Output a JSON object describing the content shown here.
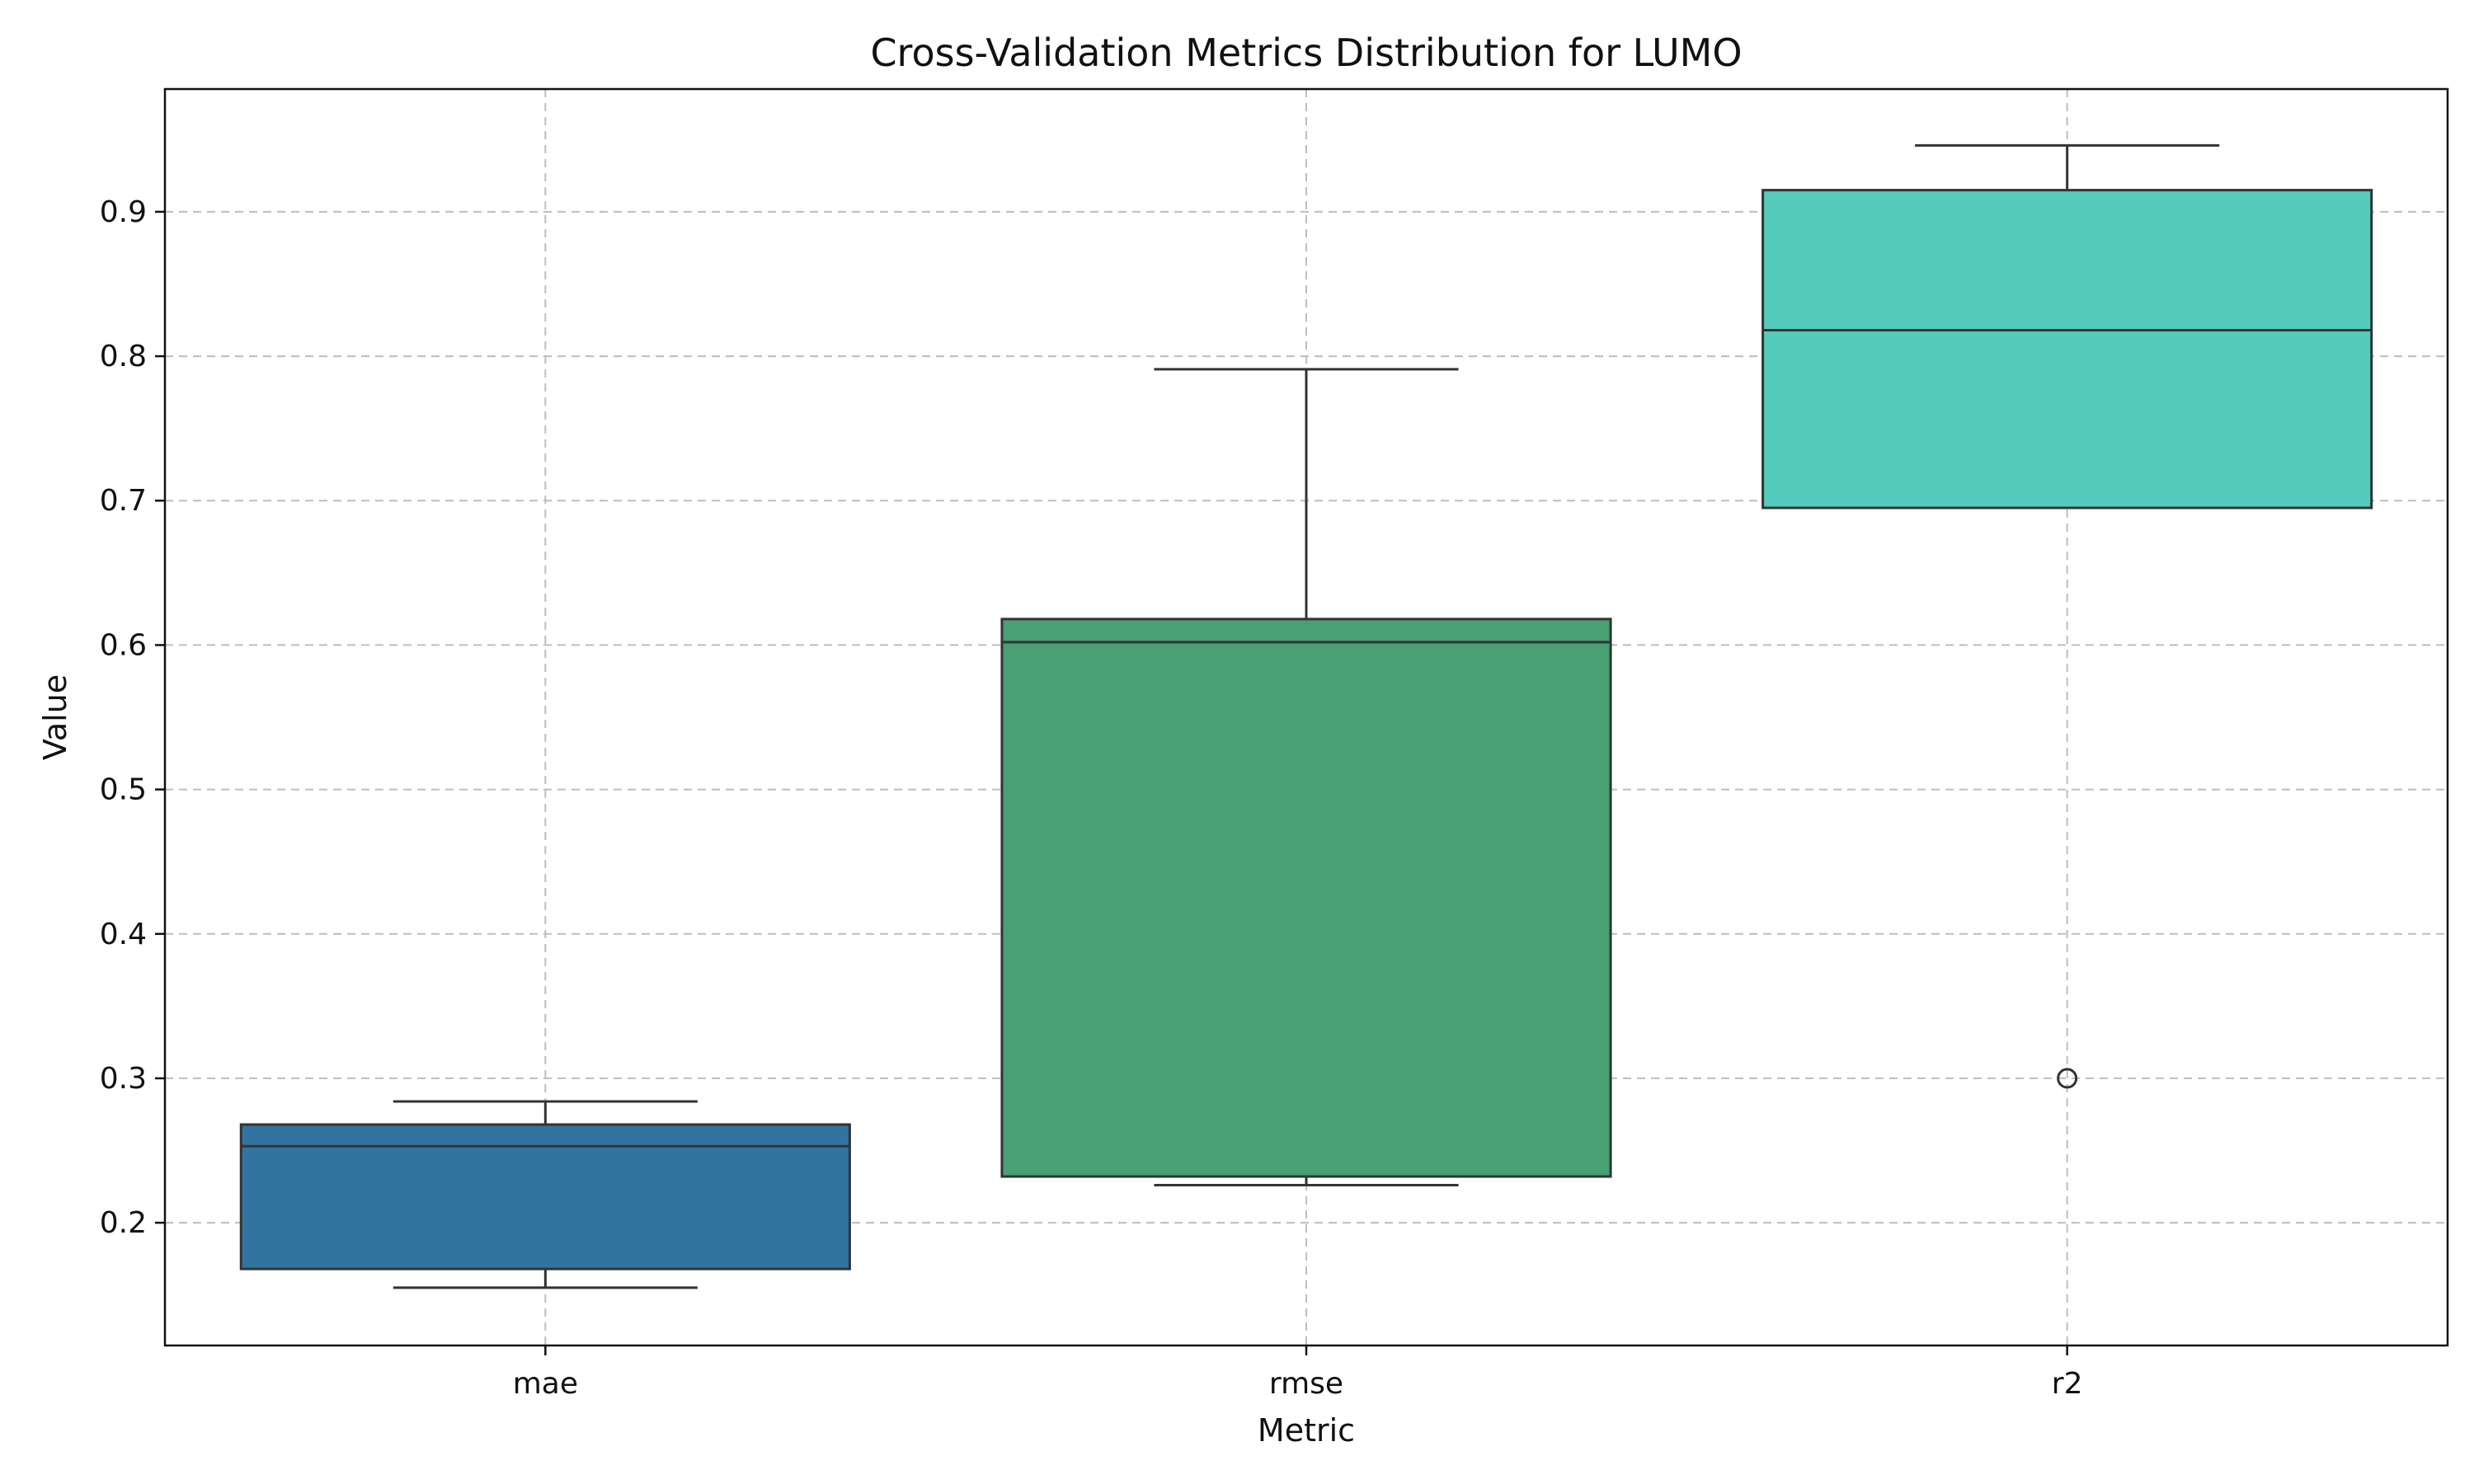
{
  "chart_data": {
    "type": "box",
    "title": "Cross-Validation Metrics Distribution for LUMO",
    "xlabel": "Metric",
    "ylabel": "Value",
    "ylim": [
      0.115,
      0.985
    ],
    "yticks": [
      0.2,
      0.3,
      0.4,
      0.5,
      0.6,
      0.7,
      0.8,
      0.9
    ],
    "ytick_labels": [
      "0.2",
      "0.3",
      "0.4",
      "0.5",
      "0.6",
      "0.7",
      "0.8",
      "0.9"
    ],
    "grid": true,
    "categories": [
      "mae",
      "rmse",
      "r2"
    ],
    "boxes": [
      {
        "category": "mae",
        "whisker_low": 0.155,
        "q1": 0.168,
        "median": 0.253,
        "q3": 0.268,
        "whisker_high": 0.284,
        "outliers": [],
        "color": "#3274A1"
      },
      {
        "category": "rmse",
        "whisker_low": 0.226,
        "q1": 0.232,
        "median": 0.602,
        "q3": 0.618,
        "whisker_high": 0.791,
        "outliers": [],
        "color": "#48A074"
      },
      {
        "category": "r2",
        "whisker_low": 0.695,
        "q1": 0.695,
        "median": 0.818,
        "q3": 0.915,
        "whisker_high": 0.946,
        "outliers": [
          0.3
        ],
        "color": "#55CBBD"
      }
    ]
  }
}
